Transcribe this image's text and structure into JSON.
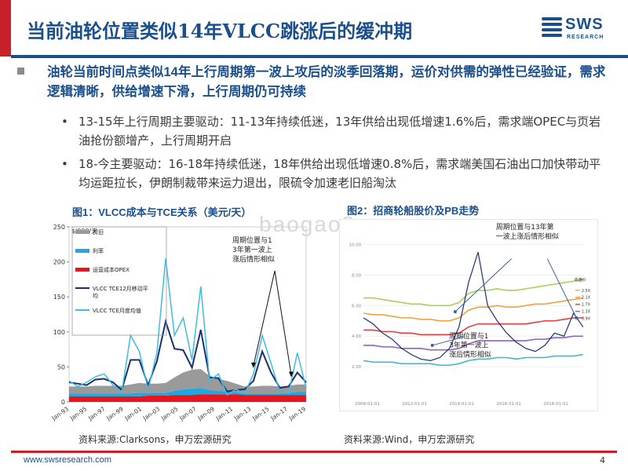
{
  "title": "当前油轮位置类似14年VLCC跳涨后的缓冲期",
  "logo": {
    "name": "SWS",
    "sub": "RESEARCH"
  },
  "headline": "油轮当前时间点类似14年上行周期第一波上攻后的淡季回落期，运价对供需的弹性已经验证，需求逻辑清晰，供给增速下滑，上行周期仍可持续",
  "bullets": [
    "13-15年上行周期主要驱动：11-13年持续低迷，13年供给出现低增速1.6%后，需求端OPEC与页岩油抢份额增产，上行周期开启",
    "18-今主要驱动：16-18年持续低迷，18年供给出现低增速0.8%后，需求端美国石油出口加快带动平均运距拉长，伊朗制裁带来运力退出，限硫令加速老旧船淘汰"
  ],
  "bullet_char": "•",
  "fig1": {
    "title": "图1：VLCC成本与TCE关系（美元/天）",
    "source": "资料来源:Clarksons，申万宏源研究",
    "annotation": "周期位置与13年第一波上涨后情形相似",
    "unit": "$'000/天"
  },
  "fig2": {
    "title": "图2：招商轮船股价及PB走势",
    "source": "资料来源:Wind，申万宏源研究",
    "annotation": "周期位置与13年第一波上涨后情形相似"
  },
  "watermark": "baogao8.com",
  "footer": {
    "url": "www.swsresearch.com",
    "page": "4"
  },
  "colors": {
    "accent": "#c8202a",
    "brand": "#1a4f8c"
  },
  "chart_data": [
    {
      "type": "area",
      "title": "图1：VLCC成本与TCE关系（美元/天）",
      "ylabel": "$'000/天",
      "ylim": [
        0,
        250
      ],
      "yticks": [
        0,
        50,
        100,
        150,
        200,
        250
      ],
      "xlabels": [
        "Jan-93",
        "Jan-95",
        "Jan-97",
        "Jan-99",
        "Jan-01",
        "Jan-03",
        "Jan-05",
        "Jan-07",
        "Jan-09",
        "Jan-11",
        "Jan-13",
        "Jan-15",
        "Jan-17",
        "Jan-19"
      ],
      "x": [
        1993,
        1994,
        1995,
        1996,
        1997,
        1998,
        1999,
        2000,
        2001,
        2002,
        2003,
        2004,
        2005,
        2006,
        2007,
        2008,
        2009,
        2010,
        2011,
        2012,
        2013,
        2014,
        2015,
        2016,
        2017,
        2018,
        2019,
        2020
      ],
      "series": [
        {
          "name": "运营成本OPEX",
          "kind": "stacked-area",
          "color": "#e8141e",
          "values": [
            8,
            8,
            8,
            8,
            8,
            8,
            8,
            8,
            8,
            9,
            9,
            9,
            10,
            10,
            10,
            11,
            11,
            11,
            11,
            11,
            10,
            10,
            10,
            10,
            10,
            10,
            10,
            10
          ]
        },
        {
          "name": "利率",
          "kind": "stacked-area",
          "color": "#1ba9e1",
          "values": [
            4,
            4,
            4,
            4,
            4,
            4,
            4,
            4,
            5,
            4,
            4,
            4,
            6,
            8,
            9,
            9,
            6,
            5,
            4,
            3,
            2,
            2,
            2,
            2,
            2,
            3,
            4,
            4
          ]
        },
        {
          "name": "折旧",
          "kind": "stacked-area",
          "color": "#9a9a9a",
          "values": [
            10,
            10,
            10,
            11,
            11,
            11,
            11,
            13,
            14,
            13,
            13,
            14,
            19,
            24,
            27,
            27,
            20,
            17,
            15,
            12,
            10,
            10,
            11,
            11,
            10,
            10,
            11,
            11
          ]
        },
        {
          "name": "VLCC TCE12月移动平均",
          "kind": "line",
          "color": "#1b2f6e",
          "values": [
            28,
            26,
            24,
            32,
            33,
            28,
            17,
            60,
            60,
            24,
            58,
            115,
            76,
            74,
            49,
            103,
            35,
            34,
            15,
            17,
            18,
            30,
            72,
            42,
            20,
            22,
            42,
            28
          ]
        },
        {
          "name": "VLCC TCE月度均值",
          "kind": "line",
          "color": "#3dbde2",
          "values": [
            30,
            22,
            28,
            36,
            40,
            24,
            14,
            95,
            72,
            18,
            70,
            205,
            95,
            120,
            60,
            165,
            30,
            40,
            10,
            18,
            12,
            40,
            95,
            55,
            15,
            12,
            70,
            20
          ]
        }
      ]
    },
    {
      "type": "line",
      "title": "图2：招商轮船股价及PB走势",
      "yticks": [
        "2.00",
        "4.00",
        "6.00",
        "8.00",
        "10.00"
      ],
      "ylim": [
        0,
        11
      ],
      "xlabels": [
        "2008-01-01",
        "2012-01-01",
        "2014-01-01",
        "2016-01-01",
        "2018-01-01"
      ],
      "legend_title": "收盘价",
      "series": [
        {
          "name": "收盘价",
          "color": "#1b2f6e",
          "values": [
            5.2,
            4.8,
            4.2,
            3.8,
            3.2,
            2.8,
            2.5,
            2.4,
            2.6,
            3.2,
            4.6,
            7.5,
            9.5,
            6.0,
            5.0,
            4.2,
            3.6,
            3.2,
            3.0,
            3.4,
            4.2,
            4.0,
            5.5,
            4.6
          ]
        },
        {
          "name": "2.5X",
          "color": "#a8d05a",
          "values": [
            6.5,
            6.5,
            6.4,
            6.3,
            6.2,
            6.1,
            6.1,
            6.0,
            6.0,
            6.0,
            6.2,
            6.8,
            7.0,
            7.0,
            7.1,
            7.0,
            7.0,
            7.1,
            7.2,
            7.3,
            7.4,
            7.5,
            7.6,
            7.7
          ]
        },
        {
          "name": "2.1X",
          "color": "#f0a040",
          "values": [
            5.5,
            5.4,
            5.4,
            5.3,
            5.2,
            5.2,
            5.1,
            5.1,
            5.0,
            5.0,
            5.2,
            5.7,
            5.9,
            5.9,
            6.0,
            5.9,
            5.9,
            6.0,
            6.1,
            6.1,
            6.2,
            6.3,
            6.4,
            6.5
          ]
        },
        {
          "name": "1.7X",
          "color": "#e04040",
          "values": [
            4.4,
            4.4,
            4.3,
            4.3,
            4.2,
            4.2,
            4.1,
            4.1,
            4.1,
            4.1,
            4.2,
            4.6,
            4.8,
            4.8,
            4.8,
            4.8,
            4.8,
            4.8,
            4.9,
            5.0,
            5.0,
            5.1,
            5.2,
            5.2
          ]
        },
        {
          "name": "1.3X",
          "color": "#9060c0",
          "values": [
            3.4,
            3.4,
            3.3,
            3.3,
            3.2,
            3.2,
            3.2,
            3.1,
            3.1,
            3.1,
            3.2,
            3.5,
            3.7,
            3.7,
            3.7,
            3.7,
            3.7,
            3.7,
            3.8,
            3.8,
            3.9,
            3.9,
            4.0,
            4.0
          ]
        },
        {
          "name": "0.9X",
          "color": "#40b8c8",
          "values": [
            2.4,
            2.3,
            2.3,
            2.3,
            2.2,
            2.2,
            2.2,
            2.2,
            2.1,
            2.1,
            2.2,
            2.4,
            2.5,
            2.5,
            2.6,
            2.6,
            2.5,
            2.6,
            2.6,
            2.6,
            2.7,
            2.7,
            2.7,
            2.8
          ]
        }
      ]
    }
  ]
}
